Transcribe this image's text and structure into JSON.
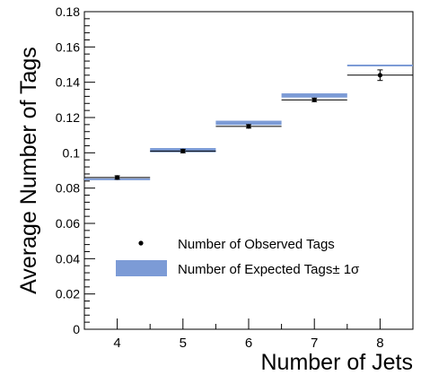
{
  "chart_data": {
    "type": "scatter",
    "xlabel": "Number of Jets",
    "ylabel": "Average Number of Tags",
    "xlim": [
      3.5,
      8.5
    ],
    "ylim": [
      0,
      0.18
    ],
    "x_ticks": [
      4,
      5,
      6,
      7,
      8
    ],
    "y_ticks": [
      0,
      0.02,
      0.04,
      0.06,
      0.08,
      0.1,
      0.12,
      0.14,
      0.16,
      0.18
    ],
    "y_tick_labels": [
      "0",
      "0.02",
      "0.04",
      "0.06",
      "0.08",
      "0.1",
      "0.12",
      "0.14",
      "0.16",
      "0.18"
    ],
    "grid": false,
    "legend_position": "bottom-right",
    "series": [
      {
        "name": "Number of Observed Tags",
        "kind": "points",
        "x": [
          4,
          5,
          6,
          7,
          8
        ],
        "x_half_width": 0.5,
        "y": [
          0.086,
          0.101,
          0.115,
          0.13,
          0.144
        ],
        "y_err": [
          0.001,
          0.001,
          0.001,
          0.001,
          0.003
        ],
        "color": "#000000"
      },
      {
        "name": "Number of Expected Tags",
        "legend_label": "Number of Expected Tags± 1σ",
        "kind": "bands",
        "x": [
          4,
          5,
          6,
          7,
          8
        ],
        "x_half_width": 0.5,
        "y": [
          0.085,
          0.1015,
          0.117,
          0.1325,
          0.1495
        ],
        "y_err": [
          0.0005,
          0.0012,
          0.0012,
          0.0012,
          0.0005
        ],
        "color": "#7c9bd6"
      }
    ]
  }
}
